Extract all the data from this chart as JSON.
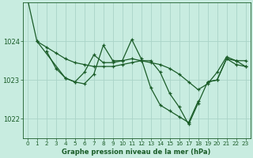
{
  "background_color": "#c8ece0",
  "grid_color": "#aad4c8",
  "line_color": "#1a5c28",
  "xlabel": "Graphe pression niveau de la mer (hPa)",
  "xlim": [
    -0.5,
    23.5
  ],
  "ylim": [
    1021.5,
    1025.0
  ],
  "yticks": [
    1022,
    1023,
    1024
  ],
  "xticks": [
    0,
    1,
    2,
    3,
    4,
    5,
    6,
    7,
    8,
    9,
    10,
    11,
    12,
    13,
    14,
    15,
    16,
    17,
    18,
    19,
    20,
    21,
    22,
    23
  ],
  "series": [
    {
      "x": [
        0,
        1,
        2,
        3,
        4,
        5,
        6,
        7,
        8,
        9,
        10,
        11,
        12,
        13,
        14,
        15,
        16,
        17,
        18,
        19,
        20,
        21,
        22,
        23
      ],
      "y": [
        1025.1,
        1024.0,
        1023.85,
        1023.7,
        1023.55,
        1023.45,
        1023.4,
        1023.35,
        1023.35,
        1023.35,
        1023.4,
        1023.45,
        1023.5,
        1023.45,
        1023.4,
        1023.3,
        1023.15,
        1022.95,
        1022.75,
        1022.9,
        1023.2,
        1023.6,
        1023.5,
        1023.5
      ]
    },
    {
      "x": [
        1,
        4,
        5,
        6,
        7,
        8,
        9,
        10,
        11,
        12,
        13,
        14,
        15,
        16,
        17,
        18,
        19,
        20,
        21,
        22,
        23
      ],
      "y": [
        1024.0,
        1023.05,
        1022.95,
        1022.9,
        1023.15,
        1023.9,
        1023.5,
        1023.5,
        1023.55,
        1023.5,
        1023.5,
        1023.2,
        1022.65,
        1022.3,
        1021.85,
        1022.4,
        1022.95,
        1023.0,
        1023.55,
        1023.4,
        1023.35
      ]
    },
    {
      "x": [
        2,
        3,
        4,
        5,
        6,
        7,
        8,
        9,
        10,
        11,
        12,
        13,
        14,
        15,
        16,
        17,
        18
      ],
      "y": [
        1023.75,
        1023.3,
        1023.05,
        1022.95,
        1023.2,
        1023.65,
        1023.45,
        1023.45,
        1023.5,
        1024.05,
        1023.55,
        1022.8,
        1022.35,
        1022.2,
        1022.05,
        1021.9,
        1022.45
      ]
    },
    {
      "x": [
        19,
        20,
        21,
        22,
        23
      ],
      "y": [
        1022.95,
        1023.0,
        1023.55,
        1023.5,
        1023.35
      ]
    }
  ]
}
